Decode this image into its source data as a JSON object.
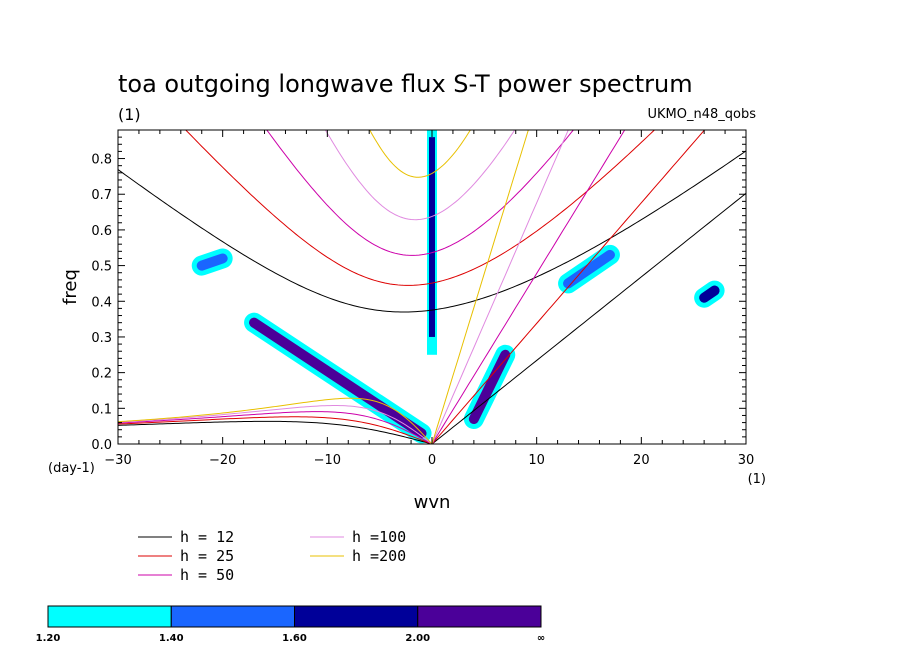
{
  "chart_data": {
    "type": "line",
    "title": "toa outgoing longwave flux S-T power spectrum",
    "subtitle": "(1)",
    "dataset_label": "UKMO_n48_qobs",
    "xlabel": "wvn",
    "ylabel": "freq",
    "x_units": "(1)",
    "y_units": "(day-1)",
    "xlim": [
      -30,
      30
    ],
    "ylim": [
      0,
      0.88
    ],
    "x_ticks": [
      -30,
      -20,
      -10,
      0,
      10,
      20,
      30
    ],
    "y_ticks": [
      0.0,
      0.1,
      0.2,
      0.3,
      0.4,
      0.5,
      0.6,
      0.7,
      0.8
    ],
    "series": [
      {
        "name": "h = 12",
        "h": 12,
        "color": "#000000"
      },
      {
        "name": "h = 25",
        "h": 25,
        "color": "#dd0000"
      },
      {
        "name": "h = 50",
        "h": 50,
        "color": "#cc00aa"
      },
      {
        "name": "h =100",
        "h": 100,
        "color": "#e08ae0"
      },
      {
        "name": "h =200",
        "h": 200,
        "color": "#e8c000"
      }
    ],
    "colorbar": {
      "levels": [
        "1.20",
        "1.40",
        "1.60",
        "2.00",
        "∞"
      ],
      "colors": [
        "#00ffff",
        "#1a66ff",
        "#000099",
        "#4b0099"
      ]
    },
    "contour_features": [
      {
        "x": 0,
        "y0": 0.25,
        "y1": 0.88,
        "level": 2
      },
      {
        "x0": -17,
        "y0": 0.34,
        "x1": -1,
        "y1": 0.03,
        "level": 3
      },
      {
        "x0": 4,
        "y0": 0.07,
        "x1": 7,
        "y1": 0.25,
        "level": 3
      },
      {
        "x0": 13,
        "y0": 0.45,
        "x1": 17,
        "y1": 0.53,
        "level": 1
      },
      {
        "x0": -22,
        "y0": 0.5,
        "x1": -20,
        "y1": 0.52,
        "level": 1
      },
      {
        "x0": 26,
        "y0": 0.41,
        "x1": 27,
        "y1": 0.43,
        "level": 2
      }
    ]
  }
}
